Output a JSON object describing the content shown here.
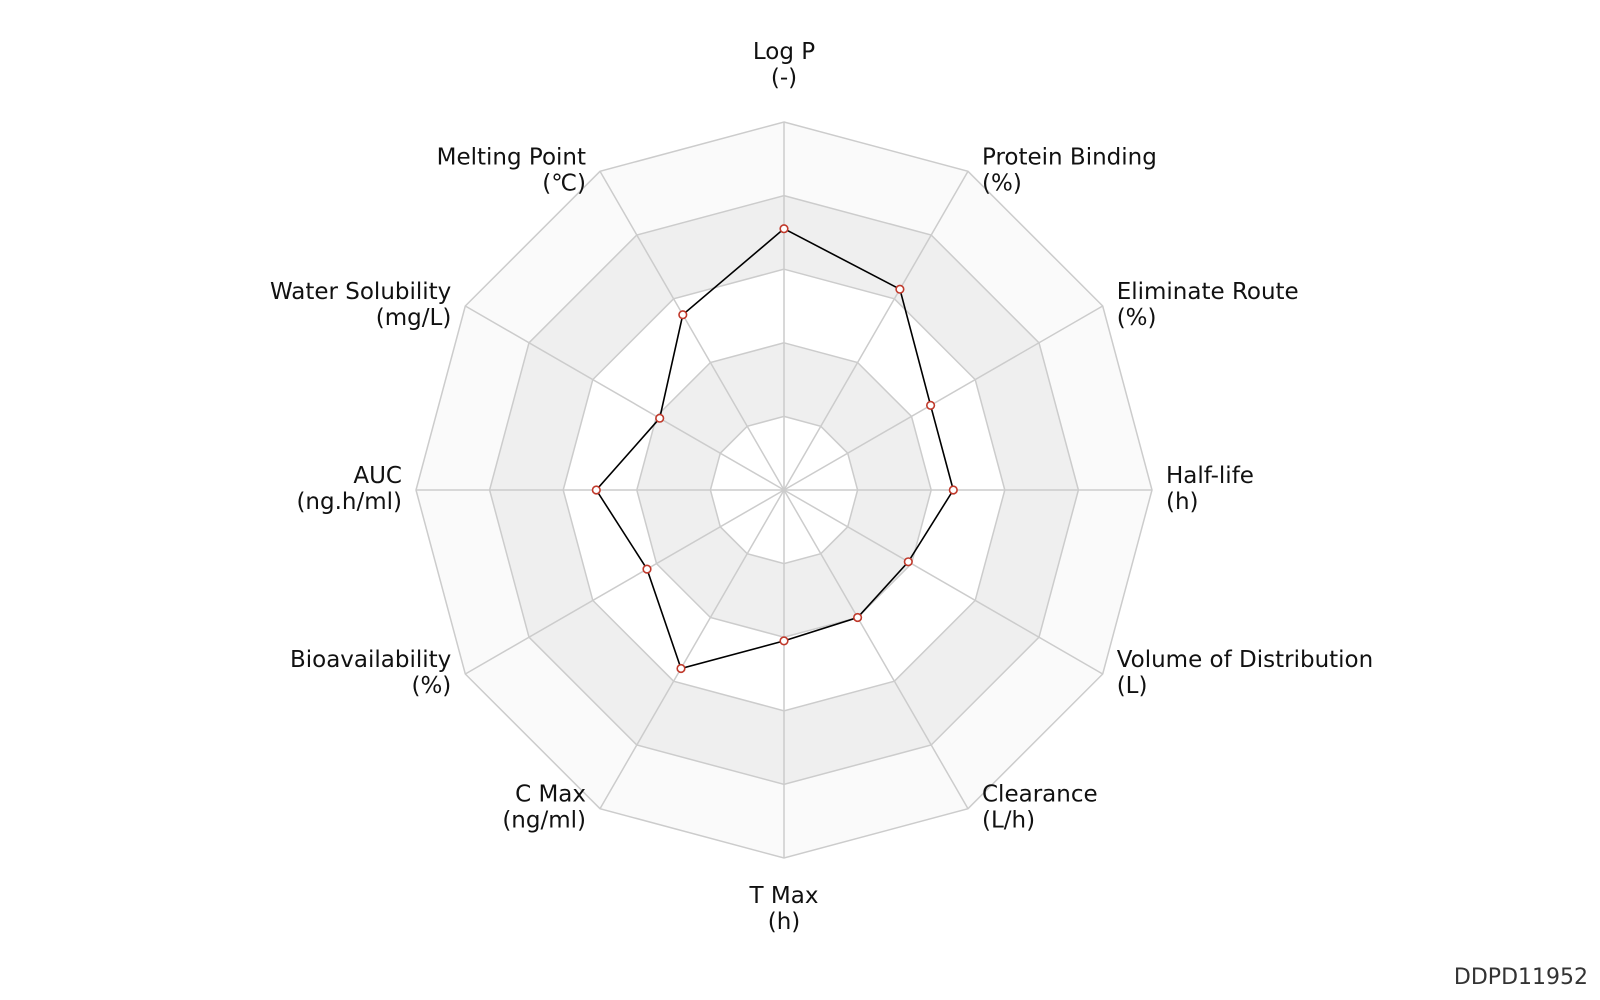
{
  "chart_data": {
    "type": "radar",
    "axes": [
      {
        "name": "Log P",
        "unit": "(-)"
      },
      {
        "name": "Protein Binding",
        "unit": "(%)"
      },
      {
        "name": "Eliminate Route",
        "unit": "(%)"
      },
      {
        "name": "Half-life",
        "unit": "(h)"
      },
      {
        "name": "Volume of Distribution",
        "unit": "(L)"
      },
      {
        "name": "Clearance",
        "unit": "(L/h)"
      },
      {
        "name": "T Max",
        "unit": "(h)"
      },
      {
        "name": "C Max",
        "unit": "(ng/ml)"
      },
      {
        "name": "Bioavailability",
        "unit": "(%)"
      },
      {
        "name": "AUC",
        "unit": "(ng.h/ml)"
      },
      {
        "name": "Water Solubility",
        "unit": "(mg/L)"
      },
      {
        "name": "Melting Point",
        "unit": "(℃)"
      }
    ],
    "levels": 5,
    "range": [
      0,
      1
    ],
    "values": [
      0.71,
      0.63,
      0.46,
      0.46,
      0.39,
      0.4,
      0.41,
      0.56,
      0.43,
      0.51,
      0.39,
      0.55
    ],
    "band_colors": [
      "#ffffff",
      "#efefef",
      "#ffffff",
      "#efefef",
      "#fafafa"
    ],
    "grid_color": "#cccccc",
    "line_color": "#000000",
    "marker_color": "#c0392b"
  },
  "watermark": "DDPD11952"
}
